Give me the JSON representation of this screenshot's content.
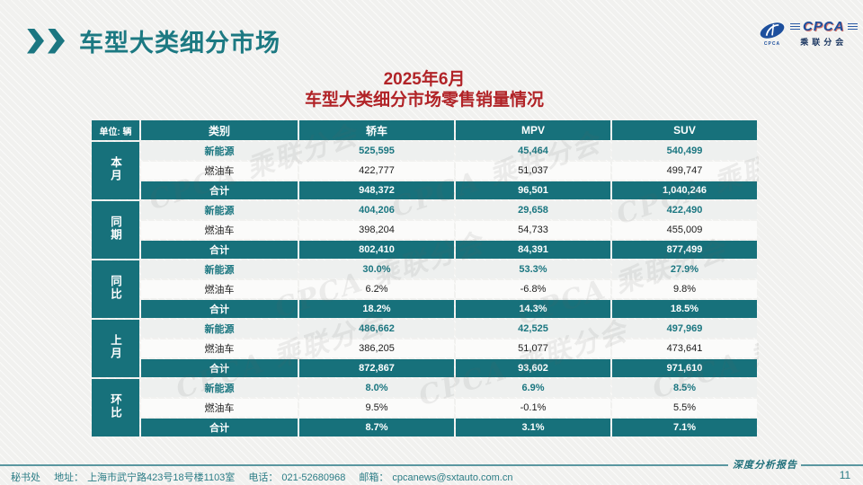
{
  "slide": {
    "header": {
      "title": "车型大类细分市场"
    },
    "logo": {
      "acronym": "CPCA",
      "acronym_small": "CPCA",
      "chinese": "乘联分会"
    },
    "subtitle": {
      "line1": "2025年6月",
      "line2": "车型大类细分市场零售销量情况"
    },
    "table": {
      "unit_label": "单位: 辆",
      "columns": [
        "类别",
        "轿车",
        "MPV",
        "SUV"
      ],
      "groups": [
        {
          "label": "本月",
          "rows": [
            {
              "category": "新能源",
              "values": [
                "525,595",
                "45,464",
                "540,499"
              ]
            },
            {
              "category": "燃油车",
              "values": [
                "422,777",
                "51,037",
                "499,747"
              ]
            },
            {
              "category": "合计",
              "values": [
                "948,372",
                "96,501",
                "1,040,246"
              ]
            }
          ]
        },
        {
          "label": "同期",
          "rows": [
            {
              "category": "新能源",
              "values": [
                "404,206",
                "29,658",
                "422,490"
              ]
            },
            {
              "category": "燃油车",
              "values": [
                "398,204",
                "54,733",
                "455,009"
              ]
            },
            {
              "category": "合计",
              "values": [
                "802,410",
                "84,391",
                "877,499"
              ]
            }
          ]
        },
        {
          "label": "同比",
          "rows": [
            {
              "category": "新能源",
              "values": [
                "30.0%",
                "53.3%",
                "27.9%"
              ]
            },
            {
              "category": "燃油车",
              "values": [
                "6.2%",
                "-6.8%",
                "9.8%"
              ]
            },
            {
              "category": "合计",
              "values": [
                "18.2%",
                "14.3%",
                "18.5%"
              ]
            }
          ]
        },
        {
          "label": "上月",
          "rows": [
            {
              "category": "新能源",
              "values": [
                "486,662",
                "42,525",
                "497,969"
              ]
            },
            {
              "category": "燃油车",
              "values": [
                "386,205",
                "51,077",
                "473,641"
              ]
            },
            {
              "category": "合计",
              "values": [
                "872,867",
                "93,602",
                "971,610"
              ]
            }
          ]
        },
        {
          "label": "环比",
          "rows": [
            {
              "category": "新能源",
              "values": [
                "8.0%",
                "6.9%",
                "8.5%"
              ]
            },
            {
              "category": "燃油车",
              "values": [
                "9.5%",
                "-0.1%",
                "5.5%"
              ]
            },
            {
              "category": "合计",
              "values": [
                "8.7%",
                "3.1%",
                "7.1%"
              ]
            }
          ]
        }
      ]
    },
    "watermark": "CPCA 乘联分会",
    "footer": {
      "secretariat": "秘书处",
      "address_label": "地址：",
      "address": "上海市武宁路423号18号楼1103室",
      "phone_label": "电话：",
      "phone": "021-52680968",
      "email_label": "邮箱：",
      "email": "cpcanews@sxtauto.com.cn",
      "report_label": "深度分析报告",
      "page_number": "11"
    },
    "colors": {
      "teal": "#17717b",
      "red": "#b12327",
      "navy": "#1d4f9d"
    }
  }
}
